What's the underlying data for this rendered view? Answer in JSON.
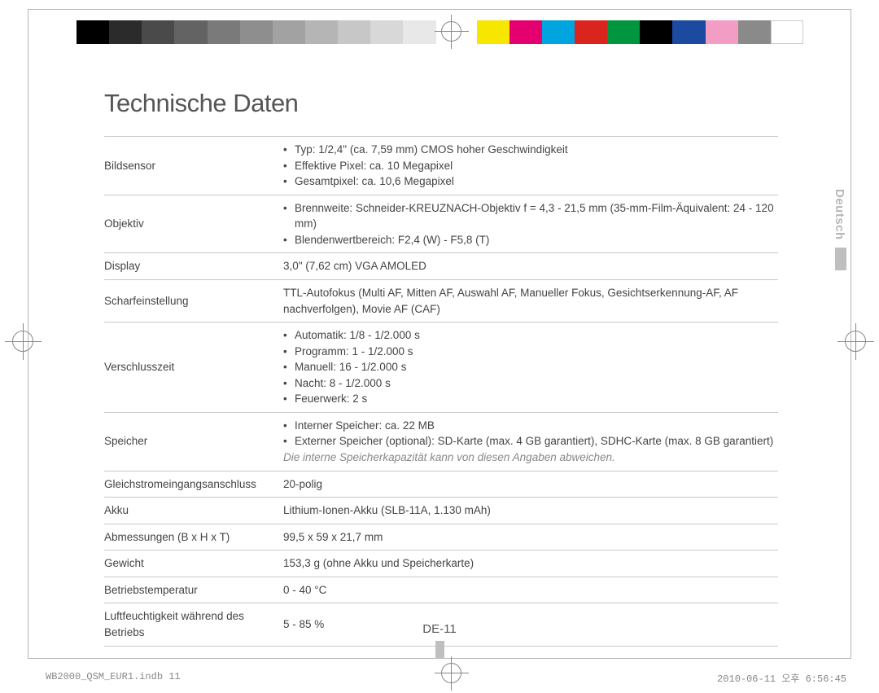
{
  "colorbar": {
    "left": [
      "#000000",
      "#2b2b2b",
      "#4a4a4a",
      "#636363",
      "#7a7a7a",
      "#8e8e8e",
      "#a2a2a2",
      "#b5b5b5",
      "#c7c7c7",
      "#d8d8d8",
      "#e8e8e8"
    ],
    "right": [
      "#f7e600",
      "#e4006e",
      "#00a5df",
      "#dc241f",
      "#00963f",
      "#000000",
      "#1b4aa0",
      "#f29ec4",
      "#8a8a8a",
      "#ffffff"
    ]
  },
  "heading": "Technische Daten",
  "language_label": "Deutsch",
  "page_number": "DE-11",
  "footer_left": "WB2000_QSM_EUR1.indb   11",
  "footer_right": "2010-06-11   오후 6:56:45",
  "rows": [
    {
      "k": "Bildsensor",
      "items": [
        "Typ: 1/2,4\" (ca. 7,59 mm) CMOS hoher Geschwindigkeit",
        "Effektive Pixel: ca. 10 Megapixel",
        "Gesamtpixel: ca. 10,6 Megapixel"
      ]
    },
    {
      "k": "Objektiv",
      "items": [
        "Brennweite: Schneider-KREUZNACH-Objektiv f = 4,3 - 21,5 mm (35-mm-Film-Äquivalent: 24 - 120 mm)",
        "Blendenwertbereich: F2,4 (W) - F5,8 (T)"
      ]
    },
    {
      "k": "Display",
      "v": "3,0\" (7,62 cm) VGA AMOLED"
    },
    {
      "k": "Scharfeinstellung",
      "v": "TTL-Autofokus (Multi AF, Mitten AF, Auswahl AF, Manueller Fokus, Gesichtserkennung-AF, AF nachverfolgen), Movie AF (CAF)"
    },
    {
      "k": "Verschlusszeit",
      "items": [
        "Automatik: 1/8 - 1/2.000 s",
        "Programm: 1 - 1/2.000 s",
        "Manuell: 16 - 1/2.000 s",
        "Nacht: 8 - 1/2.000 s",
        "Feuerwerk: 2 s"
      ]
    },
    {
      "k": "Speicher",
      "items": [
        "Interner Speicher: ca. 22 MB",
        "Externer Speicher (optional): SD-Karte (max. 4 GB garantiert), SDHC-Karte (max. 8 GB garantiert)"
      ],
      "note": "Die interne Speicherkapazität kann von diesen Angaben abweichen."
    },
    {
      "k": "Gleichstromeingangsanschluss",
      "v": "20-polig"
    },
    {
      "k": "Akku",
      "v": "Lithium-Ionen-Akku (SLB-11A, 1.130 mAh)"
    },
    {
      "k": "Abmessungen (B x H x T)",
      "v": "99,5 x 59 x 21,7 mm"
    },
    {
      "k": "Gewicht",
      "v": "153,3 g (ohne Akku und Speicherkarte)"
    },
    {
      "k": "Betriebstemperatur",
      "v": "0 - 40 °C"
    },
    {
      "k": "Luftfeuchtigkeit während des Betriebs",
      "v": "5 - 85 %"
    }
  ]
}
